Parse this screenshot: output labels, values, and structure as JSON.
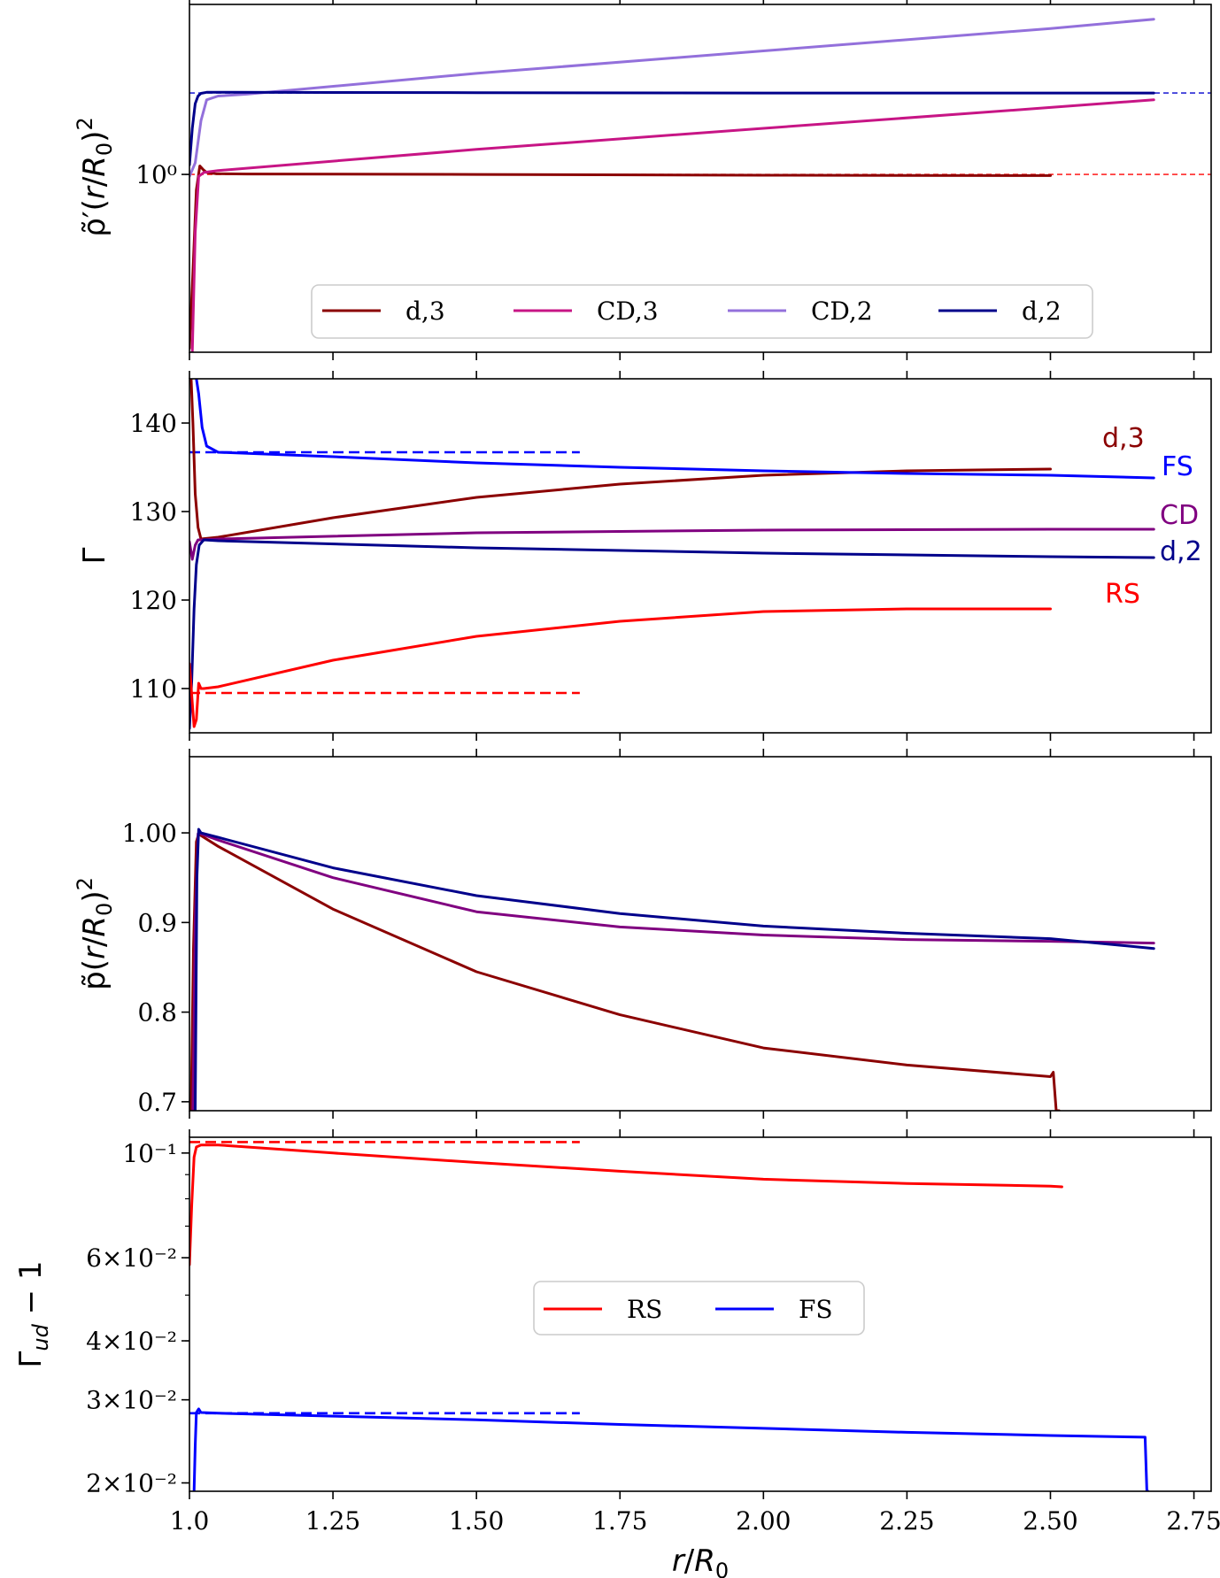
{
  "chart_data": [
    {
      "type": "line",
      "panel": "rho",
      "ylabel": "ρ̃′(r/R₀)²",
      "yscale": "log",
      "ylim": [
        0.955,
        1.045
      ],
      "xlim": [
        1.0,
        2.78
      ],
      "yticks": [
        {
          "value": 1.0,
          "label": "10⁰"
        }
      ],
      "series": [
        {
          "name": "d,3",
          "color": "#8b0000",
          "x": [
            1.0,
            1.006,
            1.012,
            1.018,
            1.024,
            1.03,
            1.045,
            1.1,
            1.5,
            2.0,
            2.5
          ],
          "y": [
            0.956,
            0.975,
            0.996,
            1.0022,
            1.0012,
            1.0005,
            1.0002,
            1.0001,
            1.0,
            0.9998,
            0.9997
          ]
        },
        {
          "name": "CD,3",
          "color": "#c71585",
          "x": [
            1.005,
            1.01,
            1.016,
            1.025,
            1.05,
            1.5,
            2.0,
            2.5,
            2.68
          ],
          "y": [
            0.955,
            0.985,
            0.9995,
            1.0005,
            1.001,
            1.0065,
            1.012,
            1.0175,
            1.0195
          ]
        },
        {
          "name": "CD,2",
          "color": "#9370db",
          "x": [
            1.0,
            1.01,
            1.02,
            1.03,
            1.05,
            1.1,
            1.5,
            2.0,
            2.5,
            2.68
          ],
          "y": [
            0.9995,
            1.003,
            1.014,
            1.0195,
            1.0205,
            1.021,
            1.0265,
            1.0325,
            1.0385,
            1.041
          ]
        },
        {
          "name": "d,2",
          "color": "#00008b",
          "x": [
            1.0,
            1.005,
            1.01,
            1.015,
            1.02,
            1.03,
            1.05,
            1.5,
            2.0,
            2.5,
            2.68
          ],
          "y": [
            1.0025,
            1.012,
            1.0185,
            1.0205,
            1.0212,
            1.0215,
            1.0215,
            1.0214,
            1.0213,
            1.0213,
            1.0213
          ]
        }
      ],
      "reference_lines": [
        {
          "y": 1.0,
          "x": [
            1.0,
            2.78
          ],
          "color": "#ff0000",
          "style": "dashed"
        },
        {
          "y": 1.0213,
          "x": [
            1.0,
            2.78
          ],
          "color": "#0000cd",
          "style": "dashed"
        }
      ],
      "legend": {
        "placement": "lower-center",
        "entries": [
          "d,3",
          "CD,3",
          "CD,2",
          "d,2"
        ]
      }
    },
    {
      "type": "line",
      "panel": "gamma",
      "ylabel": "Γ",
      "yscale": "linear",
      "ylim": [
        105,
        145
      ],
      "xlim": [
        1.0,
        2.78
      ],
      "yticks": [
        {
          "value": 110,
          "label": "110"
        },
        {
          "value": 120,
          "label": "120"
        },
        {
          "value": 130,
          "label": "130"
        },
        {
          "value": 140,
          "label": "140"
        }
      ],
      "series": [
        {
          "name": "d,3",
          "color": "#8b0000",
          "x": [
            1.003,
            1.006,
            1.01,
            1.015,
            1.02,
            1.05,
            1.25,
            1.5,
            1.75,
            2.0,
            2.25,
            2.5
          ],
          "y": [
            145,
            140,
            132,
            128.2,
            126.9,
            127.1,
            129.3,
            131.6,
            133.1,
            134.1,
            134.6,
            134.8
          ]
        },
        {
          "name": "FS",
          "color": "#0000ff",
          "x": [
            1.012,
            1.016,
            1.022,
            1.03,
            1.05,
            1.25,
            1.5,
            1.75,
            2.0,
            2.25,
            2.5,
            2.68
          ],
          "y": [
            145,
            143.3,
            139.5,
            137.4,
            136.7,
            136.2,
            135.5,
            135.0,
            134.6,
            134.3,
            134.1,
            133.8
          ]
        },
        {
          "name": "CD",
          "color": "#800080",
          "x": [
            1.0,
            1.005,
            1.01,
            1.015,
            1.02,
            1.05,
            1.5,
            2.0,
            2.5,
            2.68
          ],
          "y": [
            126.6,
            124.6,
            126.2,
            126.8,
            126.8,
            126.9,
            127.6,
            127.9,
            128.0,
            128.0
          ]
        },
        {
          "name": "d,2",
          "color": "#00008b",
          "x": [
            1.0,
            1.004,
            1.008,
            1.012,
            1.017,
            1.025,
            1.05,
            1.5,
            2.0,
            2.5,
            2.68
          ],
          "y": [
            105.5,
            111,
            119,
            124,
            126.2,
            126.8,
            126.7,
            125.9,
            125.3,
            124.9,
            124.8
          ]
        },
        {
          "name": "RS",
          "color": "#ff0000",
          "x": [
            1.0,
            1.004,
            1.008,
            1.012,
            1.016,
            1.02,
            1.025,
            1.05,
            1.25,
            1.5,
            1.75,
            2.0,
            2.25,
            2.5
          ],
          "y": [
            112.8,
            109.2,
            105.7,
            106.5,
            110.6,
            110.0,
            110.0,
            110.2,
            113.2,
            115.9,
            117.6,
            118.7,
            119.0,
            119.0
          ]
        }
      ],
      "reference_lines": [
        {
          "y": 136.7,
          "x": [
            1.0,
            1.68
          ],
          "color": "#0000ff",
          "style": "dashed"
        },
        {
          "y": 109.5,
          "x": [
            1.0,
            1.68
          ],
          "color": "#ff0000",
          "style": "dashed"
        }
      ],
      "annotations": [
        {
          "text": "d,3",
          "color": "#8b0000"
        },
        {
          "text": "FS",
          "color": "#0000ff"
        },
        {
          "text": "CD",
          "color": "#800080"
        },
        {
          "text": "d,2",
          "color": "#00008b"
        },
        {
          "text": "RS",
          "color": "#ff0000"
        }
      ]
    },
    {
      "type": "line",
      "panel": "pressure",
      "ylabel": "p̃(r/R₀)²",
      "yscale": "linear",
      "ylim": [
        0.69,
        1.085
      ],
      "xlim": [
        1.0,
        2.78
      ],
      "yticks": [
        {
          "value": 0.7,
          "label": "0.7"
        },
        {
          "value": 0.8,
          "label": "0.8"
        },
        {
          "value": 0.9,
          "label": "0.9"
        },
        {
          "value": 1.0,
          "label": "1.00"
        }
      ],
      "series": [
        {
          "name": "d,3",
          "color": "#8b0000",
          "x": [
            1.003,
            1.007,
            1.012,
            1.016,
            1.02,
            1.05,
            1.25,
            1.5,
            1.75,
            2.0,
            2.25,
            2.5,
            2.505,
            2.51,
            2.515
          ],
          "y": [
            0.69,
            0.87,
            0.99,
            0.999,
            0.997,
            0.985,
            0.915,
            0.845,
            0.797,
            0.76,
            0.741,
            0.728,
            0.733,
            0.69,
            0.69
          ]
        },
        {
          "name": "CD",
          "color": "#800080",
          "x": [
            1.006,
            1.01,
            1.015,
            1.02,
            1.05,
            1.25,
            1.5,
            1.75,
            2.0,
            2.25,
            2.5,
            2.68
          ],
          "y": [
            0.69,
            0.9,
            0.999,
            0.999,
            0.992,
            0.95,
            0.912,
            0.895,
            0.886,
            0.881,
            0.879,
            0.877
          ]
        },
        {
          "name": "d,2",
          "color": "#00008b",
          "x": [
            1.01,
            1.013,
            1.016,
            1.02,
            1.05,
            1.25,
            1.5,
            1.75,
            2.0,
            2.25,
            2.5,
            2.68
          ],
          "y": [
            0.69,
            0.95,
            1.004,
            1.0,
            0.995,
            0.961,
            0.93,
            0.91,
            0.896,
            0.888,
            0.882,
            0.871
          ]
        }
      ]
    },
    {
      "type": "line",
      "panel": "gamma_ud",
      "ylabel": "Γud − 1",
      "yscale": "log",
      "ylim": [
        0.0192,
        0.108
      ],
      "xlim": [
        1.0,
        2.78
      ],
      "xlabel": "r/R₀",
      "xticks": [
        {
          "value": 1.0,
          "label": "1.0"
        },
        {
          "value": 1.25,
          "label": "1.25"
        },
        {
          "value": 1.5,
          "label": "1.50"
        },
        {
          "value": 1.75,
          "label": "1.75"
        },
        {
          "value": 2.0,
          "label": "2.00"
        },
        {
          "value": 2.25,
          "label": "2.25"
        },
        {
          "value": 2.5,
          "label": "2.50"
        },
        {
          "value": 2.75,
          "label": "2.75"
        }
      ],
      "yticks": [
        {
          "value": 0.02,
          "label": "2×10⁻²"
        },
        {
          "value": 0.03,
          "label": "3×10⁻²"
        },
        {
          "value": 0.04,
          "label": "4×10⁻²"
        },
        {
          "value": 0.06,
          "label": "6×10⁻²"
        },
        {
          "value": 0.1,
          "label": "10⁻¹"
        }
      ],
      "series": [
        {
          "name": "RS",
          "color": "#ff0000",
          "x": [
            1.0,
            1.004,
            1.008,
            1.012,
            1.02,
            1.05,
            1.25,
            1.5,
            1.75,
            2.0,
            2.25,
            2.5,
            2.52
          ],
          "y": [
            0.058,
            0.078,
            0.098,
            0.103,
            0.104,
            0.104,
            0.1,
            0.0955,
            0.0915,
            0.088,
            0.0862,
            0.0851,
            0.0848
          ]
        },
        {
          "name": "FS",
          "color": "#0000ff",
          "x": [
            1.008,
            1.01,
            1.012,
            1.016,
            1.02,
            1.05,
            1.25,
            1.5,
            1.75,
            2.0,
            2.25,
            2.5,
            2.665,
            2.668,
            2.67
          ],
          "y": [
            0.0192,
            0.024,
            0.0282,
            0.0287,
            0.0282,
            0.0281,
            0.0277,
            0.0272,
            0.0266,
            0.0261,
            0.0256,
            0.0252,
            0.025,
            0.0192,
            0.0192
          ]
        }
      ],
      "reference_lines": [
        {
          "y": 0.1055,
          "x": [
            1.0,
            1.68
          ],
          "color": "#ff0000",
          "style": "dashed"
        },
        {
          "y": 0.0281,
          "x": [
            1.0,
            1.68
          ],
          "color": "#0000ff",
          "style": "dashed"
        }
      ],
      "legend": {
        "placement": "center",
        "entries": [
          "RS",
          "FS"
        ]
      }
    }
  ]
}
